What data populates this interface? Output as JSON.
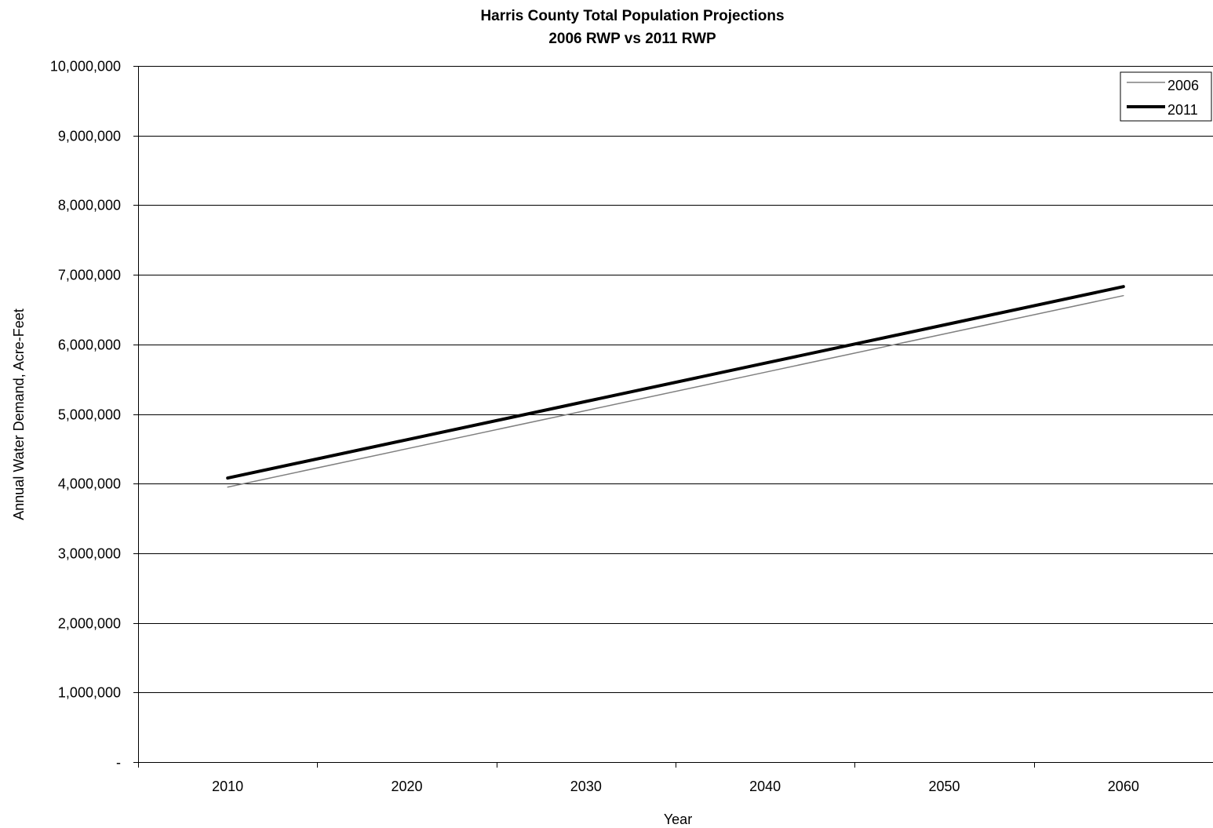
{
  "chart_data": {
    "type": "line",
    "title": "Harris County Total Population Projections",
    "subtitle": "2006 RWP vs 2011 RWP",
    "xlabel": "Year",
    "ylabel": "Annual Water Demand, Acre-Feet",
    "categories": [
      "2010",
      "2020",
      "2030",
      "2040",
      "2050",
      "2060"
    ],
    "y_tick_labels": [
      "-",
      "1,000,000",
      "2,000,000",
      "3,000,000",
      "4,000,000",
      "5,000,000",
      "6,000,000",
      "7,000,000",
      "8,000,000",
      "9,000,000",
      "10,000,000"
    ],
    "ylim": [
      0,
      10000000
    ],
    "grid": "horizontal",
    "legend_position": "top-right",
    "series": [
      {
        "name": "2006",
        "values": [
          3950000,
          4500000,
          5050000,
          5600000,
          6150000,
          6700000
        ],
        "color": "#808080"
      },
      {
        "name": "2011",
        "values": [
          4080000,
          4630000,
          5180000,
          5730000,
          6280000,
          6830000
        ],
        "color": "#000000"
      }
    ]
  }
}
